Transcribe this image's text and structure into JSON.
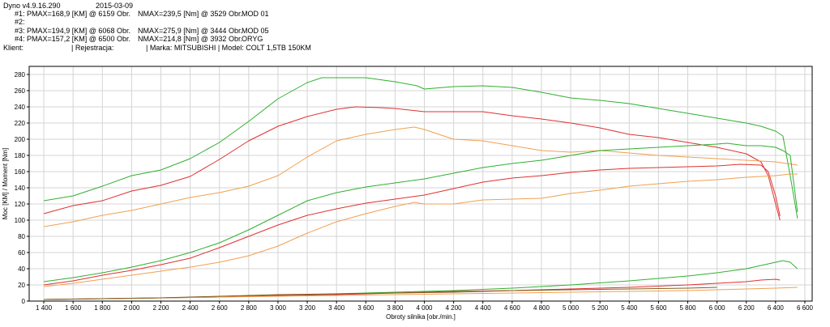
{
  "header": {
    "app": "Dyno v4.9.16.290",
    "date": "2015-03-09",
    "client_label": "Klient:",
    "registration_label": "| Rejestracja:",
    "make_model": "| Marka: MITSUBISHI | Model: COLT 1,5TB 150KM",
    "runs": [
      {
        "id": "#1:",
        "pmax": "PMAX=168,9 [KM] @ 6159 Obr.",
        "nmax": "NMAX=239,5 [Nm] @ 3529 Obr.",
        "name": "MOD 01"
      },
      {
        "id": "#2:",
        "pmax": "",
        "nmax": "",
        "name": ""
      },
      {
        "id": "#3:",
        "pmax": "PMAX=194,9 [KM] @ 6068 Obr.",
        "nmax": "NMAX=275,9 [Nm] @ 3444 Obr.",
        "name": "MOD 05"
      },
      {
        "id": "#4:",
        "pmax": "PMAX=157,2 [KM] @ 6500 Obr.",
        "nmax": "NMAX=214,8 [Nm] @ 3932 Obr.",
        "name": "ORYG"
      }
    ]
  },
  "chart_data": {
    "type": "line",
    "xlabel": "Obroty silnika [obr./min.]",
    "ylabel": "Moc [KM] / Moment [Nm]",
    "xlim": [
      1300,
      6650
    ],
    "ylim": [
      0,
      290
    ],
    "xticks": [
      1400,
      1600,
      1800,
      2000,
      2200,
      2400,
      2600,
      2800,
      3000,
      3200,
      3400,
      3600,
      3800,
      4000,
      4200,
      4400,
      4600,
      4800,
      5000,
      5200,
      5400,
      5600,
      5800,
      6000,
      6200,
      6400,
      6600
    ],
    "xtick_labels": [
      "1 400",
      "1 600",
      "1 800",
      "2 000",
      "2 200",
      "2 400",
      "2 600",
      "2 800",
      "3 000",
      "3 200",
      "3 400",
      "3 600",
      "3 800",
      "4 000",
      "4 200",
      "4 400",
      "4 600",
      "4 800",
      "5 000",
      "5 200",
      "5 400",
      "5 600",
      "5 800",
      "6 000",
      "6 200",
      "6 400",
      "6 600"
    ],
    "yticks": [
      0,
      20,
      40,
      60,
      80,
      100,
      120,
      140,
      160,
      180,
      200,
      220,
      240,
      260,
      280
    ],
    "ytick_labels": [
      "0",
      "20",
      "40",
      "60",
      "80",
      "100",
      "120",
      "140",
      "160",
      "180",
      "200",
      "220",
      "240",
      "260",
      "280"
    ],
    "grid": true,
    "colors": {
      "mod01": "#e03030",
      "mod05": "#30b030",
      "oryg": "#f0a050",
      "loss": "#806020"
    },
    "series": [
      {
        "key": "mod05_torque",
        "color": "#30b030",
        "x": [
          1400,
          1600,
          1800,
          2000,
          2200,
          2400,
          2600,
          2800,
          3000,
          3200,
          3300,
          3444,
          3600,
          3800,
          3950,
          4000,
          4200,
          4400,
          4600,
          4800,
          5000,
          5200,
          5400,
          5600,
          5800,
          6000,
          6200,
          6300,
          6400,
          6450,
          6500,
          6550
        ],
        "y": [
          124,
          130,
          142,
          155,
          162,
          176,
          196,
          222,
          250,
          270,
          276,
          276,
          276,
          271,
          266,
          262,
          265,
          266,
          264,
          258,
          251,
          248,
          244,
          238,
          232,
          226,
          220,
          216,
          210,
          204,
          155,
          102
        ]
      },
      {
        "key": "mod01_torque",
        "color": "#e03030",
        "x": [
          1400,
          1600,
          1800,
          2000,
          2200,
          2400,
          2600,
          2800,
          3000,
          3200,
          3400,
          3529,
          3700,
          3800,
          4000,
          4200,
          4400,
          4600,
          4800,
          5000,
          5200,
          5400,
          5600,
          5800,
          6000,
          6200,
          6300,
          6350,
          6400,
          6430
        ],
        "y": [
          108,
          118,
          124,
          136,
          143,
          154,
          175,
          198,
          216,
          228,
          237,
          240,
          239,
          238,
          234,
          234,
          234,
          229,
          225,
          220,
          214,
          206,
          202,
          196,
          190,
          182,
          172,
          155,
          120,
          100
        ]
      },
      {
        "key": "oryg_torque",
        "color": "#f0a050",
        "x": [
          1400,
          1600,
          1800,
          2000,
          2200,
          2400,
          2600,
          2800,
          3000,
          3200,
          3400,
          3600,
          3800,
          3932,
          4000,
          4200,
          4400,
          4600,
          4800,
          5000,
          5200,
          5400,
          5600,
          5800,
          6000,
          6200,
          6400,
          6550
        ],
        "y": [
          92,
          98,
          106,
          112,
          120,
          128,
          134,
          142,
          155,
          178,
          198,
          206,
          212,
          215,
          212,
          200,
          198,
          192,
          186,
          184,
          186,
          183,
          180,
          178,
          176,
          174,
          172,
          168
        ]
      },
      {
        "key": "mod05_power",
        "color": "#30b030",
        "x": [
          1400,
          1600,
          1800,
          2000,
          2200,
          2400,
          2600,
          2800,
          3000,
          3200,
          3400,
          3600,
          3800,
          4000,
          4200,
          4400,
          4600,
          4800,
          5000,
          5200,
          5400,
          5600,
          5800,
          6000,
          6068,
          6200,
          6300,
          6400,
          6450,
          6500,
          6550
        ],
        "y": [
          24,
          29,
          35,
          42,
          50,
          60,
          72,
          88,
          106,
          124,
          134,
          141,
          146,
          151,
          158,
          165,
          170,
          174,
          180,
          186,
          188,
          190,
          192,
          194,
          195,
          192,
          192,
          190,
          186,
          180,
          110
        ]
      },
      {
        "key": "mod01_power",
        "color": "#e03030",
        "x": [
          1400,
          1600,
          1800,
          2000,
          2200,
          2400,
          2600,
          2800,
          3000,
          3200,
          3400,
          3600,
          3800,
          4000,
          4200,
          4400,
          4600,
          4800,
          5000,
          5200,
          5400,
          5600,
          5800,
          6000,
          6159,
          6300,
          6350,
          6400,
          6430
        ],
        "y": [
          20,
          25,
          32,
          38,
          45,
          53,
          66,
          80,
          94,
          106,
          114,
          121,
          126,
          131,
          139,
          147,
          152,
          155,
          159,
          162,
          164,
          165,
          166,
          167,
          169,
          168,
          160,
          130,
          105
        ]
      },
      {
        "key": "oryg_power",
        "color": "#f0a050",
        "x": [
          1400,
          1600,
          1800,
          2000,
          2200,
          2400,
          2600,
          2800,
          3000,
          3200,
          3400,
          3600,
          3800,
          3932,
          4000,
          4200,
          4400,
          4600,
          4800,
          5000,
          5200,
          5400,
          5600,
          5800,
          6000,
          6200,
          6400,
          6500,
          6550
        ],
        "y": [
          18,
          22,
          27,
          32,
          37,
          42,
          48,
          56,
          68,
          84,
          98,
          108,
          117,
          122,
          120,
          120,
          125,
          126,
          127,
          133,
          137,
          142,
          145,
          148,
          150,
          153,
          155,
          157,
          157
        ]
      },
      {
        "key": "mod05_loss",
        "color": "#30b030",
        "x": [
          1400,
          1800,
          2200,
          2600,
          3000,
          3400,
          3800,
          4200,
          4600,
          5000,
          5400,
          5800,
          6000,
          6200,
          6400,
          6450,
          6500,
          6550
        ],
        "y": [
          2,
          3,
          4,
          5,
          7,
          9,
          11,
          13,
          16,
          20,
          25,
          31,
          35,
          40,
          48,
          50,
          48,
          40
        ]
      },
      {
        "key": "mod01_loss",
        "color": "#e03030",
        "x": [
          1400,
          1800,
          2200,
          2600,
          3000,
          3400,
          3800,
          4200,
          4600,
          5000,
          5400,
          5800,
          6000,
          6200,
          6300,
          6400,
          6430
        ],
        "y": [
          2,
          3,
          4,
          5,
          7,
          8,
          10,
          12,
          13,
          15,
          17,
          20,
          22,
          24,
          26,
          27,
          26
        ]
      },
      {
        "key": "oryg_loss",
        "color": "#f0a050",
        "x": [
          1400,
          1800,
          2200,
          2600,
          3000,
          3400,
          3800,
          4200,
          4600,
          5000,
          5400,
          5800,
          6000,
          6200,
          6400,
          6550
        ],
        "y": [
          2,
          3,
          4,
          5,
          6,
          7,
          8,
          9,
          10,
          11,
          12,
          13,
          14,
          15,
          16,
          17
        ]
      },
      {
        "key": "base_loss",
        "color": "#806020",
        "x": [
          1400,
          1800,
          2200,
          2600,
          3000,
          3400,
          3800,
          4200,
          4600,
          5000,
          5400,
          5800,
          6000
        ],
        "y": [
          2,
          3,
          4,
          6,
          8,
          9,
          10,
          11,
          13,
          14,
          15,
          16,
          17
        ]
      }
    ]
  }
}
